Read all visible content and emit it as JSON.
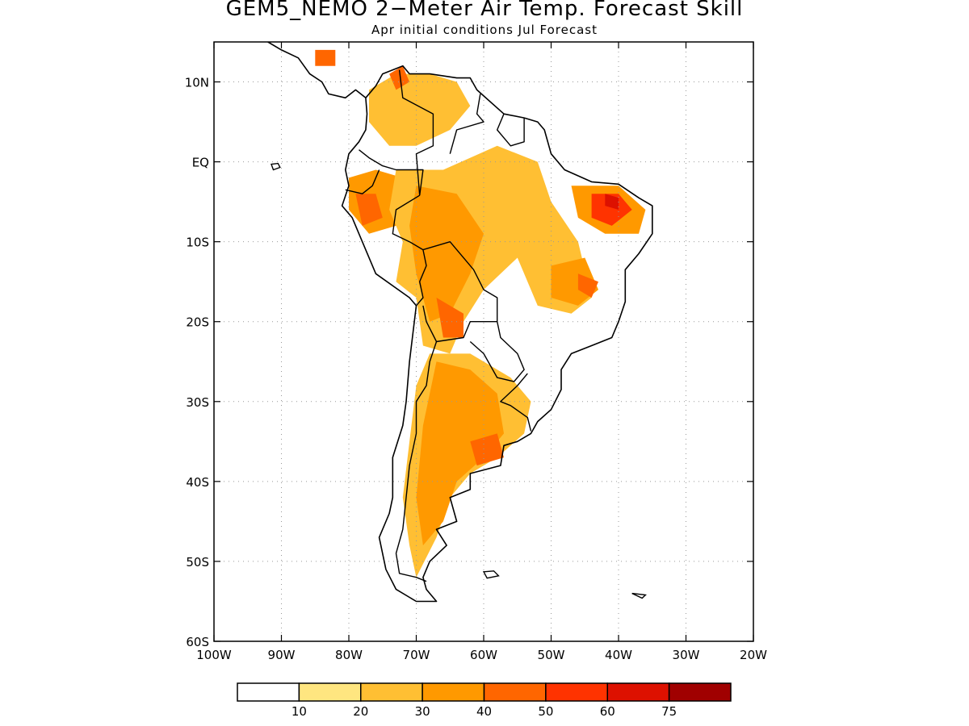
{
  "title": "GEM5_NEMO 2−Meter Air Temp. Forecast Skill",
  "subtitle": "Apr initial conditions  Jul Forecast",
  "map": {
    "lon_range": [
      -100,
      -20
    ],
    "lat_range": [
      -60,
      15
    ],
    "lat_ticks": [
      {
        "value": 10,
        "label": "10N"
      },
      {
        "value": 0,
        "label": "EQ"
      },
      {
        "value": -10,
        "label": "10S"
      },
      {
        "value": -20,
        "label": "20S"
      },
      {
        "value": -30,
        "label": "30S"
      },
      {
        "value": -40,
        "label": "40S"
      },
      {
        "value": -50,
        "label": "50S"
      },
      {
        "value": -60,
        "label": "60S"
      }
    ],
    "lon_ticks": [
      {
        "value": -100,
        "label": "100W"
      },
      {
        "value": -90,
        "label": "90W"
      },
      {
        "value": -80,
        "label": "80W"
      },
      {
        "value": -70,
        "label": "70W"
      },
      {
        "value": -60,
        "label": "60W"
      },
      {
        "value": -50,
        "label": "50W"
      },
      {
        "value": -40,
        "label": "40W"
      },
      {
        "value": -30,
        "label": "30W"
      },
      {
        "value": -20,
        "label": "20W"
      }
    ],
    "grid": true
  },
  "colorbar": {
    "labels": [
      "10",
      "20",
      "30",
      "40",
      "50",
      "60",
      "75"
    ],
    "colors": [
      "#ffffff",
      "#ffe680",
      "#ffbf33",
      "#ff9900",
      "#ff6600",
      "#ff3300",
      "#dd1100",
      "#a00000"
    ]
  },
  "skill_regions": [
    {
      "level": 3,
      "points": [
        [
          -80,
          -2
        ],
        [
          -76,
          -1
        ],
        [
          -72,
          -2
        ],
        [
          -70,
          -5
        ],
        [
          -73,
          -8
        ],
        [
          -77,
          -9
        ],
        [
          -80,
          -6
        ]
      ]
    },
    {
      "level": 4,
      "points": [
        [
          -79,
          -4
        ],
        [
          -76,
          -4
        ],
        [
          -75,
          -7
        ],
        [
          -78,
          -8
        ]
      ]
    },
    {
      "level": 2,
      "points": [
        [
          -77,
          9
        ],
        [
          -73,
          11
        ],
        [
          -68,
          11
        ],
        [
          -64,
          10
        ],
        [
          -62,
          7
        ],
        [
          -65,
          4
        ],
        [
          -70,
          2
        ],
        [
          -74,
          2
        ],
        [
          -77,
          5
        ]
      ]
    },
    {
      "level": 4,
      "points": [
        [
          -74,
          11
        ],
        [
          -72,
          12
        ],
        [
          -71,
          10
        ],
        [
          -73,
          9
        ]
      ]
    },
    {
      "level": 2,
      "points": [
        [
          -73,
          -1
        ],
        [
          -66,
          -1
        ],
        [
          -58,
          2
        ],
        [
          -52,
          0
        ],
        [
          -50,
          -5
        ],
        [
          -46,
          -10
        ],
        [
          -44,
          -17
        ],
        [
          -47,
          -19
        ],
        [
          -52,
          -18
        ],
        [
          -55,
          -12
        ],
        [
          -60,
          -16
        ],
        [
          -63,
          -20
        ],
        [
          -65,
          -24
        ],
        [
          -69,
          -23
        ],
        [
          -70,
          -17
        ],
        [
          -73,
          -15
        ],
        [
          -72,
          -10
        ],
        [
          -74,
          -6
        ]
      ]
    },
    {
      "level": 3,
      "points": [
        [
          -70,
          -3
        ],
        [
          -64,
          -4
        ],
        [
          -60,
          -9
        ],
        [
          -62,
          -14
        ],
        [
          -65,
          -19
        ],
        [
          -68,
          -20
        ],
        [
          -70,
          -14
        ],
        [
          -71,
          -8
        ]
      ]
    },
    {
      "level": 4,
      "points": [
        [
          -67,
          -17
        ],
        [
          -63,
          -19
        ],
        [
          -63,
          -22
        ],
        [
          -66,
          -22
        ]
      ]
    },
    {
      "level": 3,
      "points": [
        [
          -50,
          -13
        ],
        [
          -45,
          -12
        ],
        [
          -43,
          -16
        ],
        [
          -46,
          -18
        ],
        [
          -50,
          -17
        ]
      ]
    },
    {
      "level": 4,
      "points": [
        [
          -46,
          -14
        ],
        [
          -43,
          -15
        ],
        [
          -44,
          -17
        ],
        [
          -46,
          -16
        ]
      ]
    },
    {
      "level": 3,
      "points": [
        [
          -47,
          -3
        ],
        [
          -40,
          -3
        ],
        [
          -36,
          -6
        ],
        [
          -37,
          -9
        ],
        [
          -42,
          -9
        ],
        [
          -46,
          -7
        ]
      ]
    },
    {
      "level": 5,
      "points": [
        [
          -44,
          -4
        ],
        [
          -40,
          -4
        ],
        [
          -38,
          -6
        ],
        [
          -41,
          -8
        ],
        [
          -44,
          -7
        ]
      ]
    },
    {
      "level": 6,
      "points": [
        [
          -42,
          -4
        ],
        [
          -40,
          -4.5
        ],
        [
          -40,
          -6
        ],
        [
          -42,
          -5.5
        ]
      ]
    },
    {
      "level": 2,
      "points": [
        [
          -68,
          -24
        ],
        [
          -62,
          -24
        ],
        [
          -56,
          -27
        ],
        [
          -53,
          -30
        ],
        [
          -54,
          -34
        ],
        [
          -58,
          -37
        ],
        [
          -62,
          -39
        ],
        [
          -65,
          -42
        ],
        [
          -67,
          -47
        ],
        [
          -70,
          -52
        ],
        [
          -71,
          -48
        ],
        [
          -72,
          -42
        ],
        [
          -71,
          -35
        ],
        [
          -70,
          -28
        ]
      ]
    },
    {
      "level": 3,
      "points": [
        [
          -67,
          -25
        ],
        [
          -62,
          -26
        ],
        [
          -58,
          -29
        ],
        [
          -57,
          -34
        ],
        [
          -60,
          -37
        ],
        [
          -64,
          -40
        ],
        [
          -66,
          -45
        ],
        [
          -69,
          -48
        ],
        [
          -70,
          -42
        ],
        [
          -69,
          -33
        ]
      ]
    },
    {
      "level": 4,
      "points": [
        [
          -62,
          -35
        ],
        [
          -58,
          -34
        ],
        [
          -57,
          -37
        ],
        [
          -61,
          -38
        ]
      ]
    },
    {
      "level": 4,
      "points": [
        [
          -85,
          14
        ],
        [
          -82,
          14
        ],
        [
          -82,
          12
        ],
        [
          -85,
          12
        ]
      ]
    }
  ],
  "coastlines": [
    [
      [
        -77.5,
        8
      ],
      [
        -79,
        9
      ],
      [
        -80.5,
        8
      ],
      [
        -83,
        8.5
      ],
      [
        -84,
        10
      ],
      [
        -85.8,
        11
      ],
      [
        -87.5,
        13
      ],
      [
        -90,
        14
      ],
      [
        -92,
        15
      ]
    ],
    [
      [
        -77.5,
        8
      ],
      [
        -76,
        9.5
      ],
      [
        -75,
        11
      ],
      [
        -72,
        12
      ],
      [
        -71,
        11
      ],
      [
        -68,
        11
      ],
      [
        -64,
        10.5
      ],
      [
        -62,
        10.5
      ],
      [
        -61,
        9
      ],
      [
        -57,
        6
      ],
      [
        -54,
        5.5
      ],
      [
        -52,
        5
      ],
      [
        -51,
        4
      ],
      [
        -50,
        1
      ],
      [
        -48,
        -1
      ],
      [
        -44,
        -2.5
      ],
      [
        -40,
        -2.8
      ],
      [
        -37,
        -4.5
      ],
      [
        -35,
        -5.5
      ],
      [
        -35,
        -9
      ],
      [
        -37,
        -11.5
      ],
      [
        -39,
        -13.5
      ],
      [
        -39,
        -17.5
      ],
      [
        -40,
        -20
      ],
      [
        -41,
        -22
      ],
      [
        -44,
        -23
      ],
      [
        -47,
        -24
      ],
      [
        -48.5,
        -26
      ],
      [
        -48.5,
        -28.5
      ],
      [
        -50,
        -31
      ],
      [
        -52,
        -32.5
      ],
      [
        -53,
        -34
      ],
      [
        -55,
        -35
      ],
      [
        -57,
        -35.5
      ],
      [
        -57.5,
        -38
      ],
      [
        -62,
        -39
      ],
      [
        -62,
        -41
      ],
      [
        -65,
        -42
      ],
      [
        -64,
        -45
      ],
      [
        -67,
        -46
      ],
      [
        -65.5,
        -48
      ],
      [
        -68,
        -50
      ],
      [
        -69,
        -52
      ],
      [
        -68.5,
        -53.5
      ],
      [
        -67,
        -55
      ],
      [
        -70,
        -55
      ],
      [
        -73,
        -53.5
      ],
      [
        -74.5,
        -51
      ],
      [
        -75.5,
        -47
      ],
      [
        -74,
        -44
      ],
      [
        -73.5,
        -42
      ],
      [
        -73.5,
        -37
      ],
      [
        -72,
        -33
      ],
      [
        -71.5,
        -30
      ],
      [
        -71,
        -25
      ],
      [
        -70,
        -18
      ],
      [
        -71,
        -17
      ],
      [
        -76,
        -14
      ],
      [
        -78,
        -10
      ],
      [
        -79.5,
        -7
      ],
      [
        -81,
        -5.5
      ],
      [
        -80,
        -3
      ],
      [
        -80.5,
        -1
      ],
      [
        -80,
        1
      ],
      [
        -78.5,
        2.5
      ],
      [
        -77.5,
        4
      ],
      [
        -77.3,
        6
      ],
      [
        -77.5,
        8
      ]
    ]
  ],
  "borders": [
    [
      [
        -72.5,
        11.5
      ],
      [
        -72,
        8
      ],
      [
        -67.5,
        6
      ],
      [
        -67.5,
        2
      ],
      [
        -70,
        1
      ],
      [
        -69.5,
        -4.2
      ]
    ],
    [
      [
        -60.5,
        8.5
      ],
      [
        -61,
        6
      ],
      [
        -60,
        5
      ],
      [
        -64,
        4
      ],
      [
        -65,
        1
      ]
    ],
    [
      [
        -57,
        6
      ],
      [
        -58,
        4
      ],
      [
        -56,
        2
      ],
      [
        -54,
        2.5
      ],
      [
        -54,
        5.5
      ]
    ],
    [
      [
        -69.5,
        -4.2
      ],
      [
        -73,
        -6
      ],
      [
        -73.5,
        -9
      ],
      [
        -71,
        -10
      ],
      [
        -69,
        -11
      ],
      [
        -68.5,
        -13
      ],
      [
        -69.5,
        -15
      ],
      [
        -69,
        -17
      ],
      [
        -70,
        -18
      ]
    ],
    [
      [
        -69.5,
        -4.2
      ],
      [
        -69,
        -1
      ],
      [
        -73,
        -1
      ],
      [
        -75,
        -0.5
      ],
      [
        -77,
        0.5
      ],
      [
        -78.5,
        1.5
      ]
    ],
    [
      [
        -80.5,
        -3.5
      ],
      [
        -78,
        -4
      ],
      [
        -76.5,
        -3
      ],
      [
        -75.5,
        -1
      ]
    ],
    [
      [
        -69,
        -11
      ],
      [
        -65,
        -10
      ],
      [
        -61.5,
        -13.5
      ],
      [
        -60,
        -16
      ],
      [
        -58,
        -17
      ],
      [
        -58,
        -20
      ],
      [
        -62,
        -20
      ],
      [
        -63,
        -22
      ],
      [
        -67,
        -22.5
      ],
      [
        -68.5,
        -20
      ],
      [
        -69,
        -18
      ]
    ],
    [
      [
        -58,
        -20
      ],
      [
        -57.5,
        -22
      ],
      [
        -55,
        -24
      ],
      [
        -54,
        -26
      ],
      [
        -55.5,
        -27.5
      ],
      [
        -58,
        -27
      ],
      [
        -60,
        -24
      ],
      [
        -62,
        -22.5
      ]
    ],
    [
      [
        -53.5,
        -26.5
      ],
      [
        -55,
        -28
      ],
      [
        -57.5,
        -30
      ],
      [
        -56,
        -30.5
      ],
      [
        -53.5,
        -32
      ],
      [
        -53,
        -33.7
      ]
    ],
    [
      [
        -67,
        -22.5
      ],
      [
        -68,
        -25
      ],
      [
        -68.5,
        -28
      ],
      [
        -70,
        -30
      ],
      [
        -70,
        -34
      ],
      [
        -71,
        -38
      ],
      [
        -71.5,
        -42
      ],
      [
        -72,
        -46
      ],
      [
        -73,
        -49
      ],
      [
        -72.5,
        -51.5
      ],
      [
        -70,
        -52
      ],
      [
        -68.5,
        -52.5
      ]
    ]
  ],
  "islands": [
    [
      [
        -91.5,
        -0.3
      ],
      [
        -90.5,
        -0.2
      ],
      [
        -90.2,
        -0.7
      ],
      [
        -91.2,
        -1
      ],
      [
        -91.5,
        -0.3
      ]
    ],
    [
      [
        -60,
        -51.3
      ],
      [
        -58.5,
        -51.2
      ],
      [
        -57.8,
        -51.8
      ],
      [
        -59.5,
        -52.1
      ],
      [
        -60,
        -51.3
      ]
    ],
    [
      [
        -38,
        -54
      ],
      [
        -36,
        -54.2
      ],
      [
        -36.5,
        -54.6
      ],
      [
        -38,
        -54
      ]
    ]
  ]
}
